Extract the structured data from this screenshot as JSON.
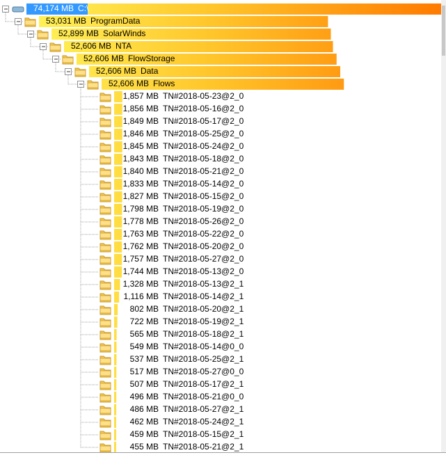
{
  "tree": {
    "size": "74,174 MB",
    "name": "C:\\",
    "children": [
      {
        "size": "53,031 MB",
        "name": "ProgramData",
        "children": [
          {
            "size": "52,899 MB",
            "name": "SolarWinds",
            "children": [
              {
                "size": "52,606 MB",
                "name": "NTA",
                "children": [
                  {
                    "size": "52,606 MB",
                    "name": "FlowStorage",
                    "children": [
                      {
                        "size": "52,606 MB",
                        "name": "Data",
                        "children": [
                          {
                            "size": "52,606 MB",
                            "name": "Flows",
                            "children": [
                              {
                                "size": "1,857 MB",
                                "name": "TN#2018-05-23@2_0"
                              },
                              {
                                "size": "1,856 MB",
                                "name": "TN#2018-05-16@2_0"
                              },
                              {
                                "size": "1,849 MB",
                                "name": "TN#2018-05-17@2_0"
                              },
                              {
                                "size": "1,846 MB",
                                "name": "TN#2018-05-25@2_0"
                              },
                              {
                                "size": "1,845 MB",
                                "name": "TN#2018-05-24@2_0"
                              },
                              {
                                "size": "1,843 MB",
                                "name": "TN#2018-05-18@2_0"
                              },
                              {
                                "size": "1,840 MB",
                                "name": "TN#2018-05-21@2_0"
                              },
                              {
                                "size": "1,833 MB",
                                "name": "TN#2018-05-14@2_0"
                              },
                              {
                                "size": "1,827 MB",
                                "name": "TN#2018-05-15@2_0"
                              },
                              {
                                "size": "1,798 MB",
                                "name": "TN#2018-05-19@2_0"
                              },
                              {
                                "size": "1,778 MB",
                                "name": "TN#2018-05-26@2_0"
                              },
                              {
                                "size": "1,763 MB",
                                "name": "TN#2018-05-22@2_0"
                              },
                              {
                                "size": "1,762 MB",
                                "name": "TN#2018-05-20@2_0"
                              },
                              {
                                "size": "1,757 MB",
                                "name": "TN#2018-05-27@2_0"
                              },
                              {
                                "size": "1,744 MB",
                                "name": "TN#2018-05-13@2_0"
                              },
                              {
                                "size": "1,328 MB",
                                "name": "TN#2018-05-13@2_1"
                              },
                              {
                                "size": "1,116 MB",
                                "name": "TN#2018-05-14@2_1"
                              },
                              {
                                "size": "802 MB",
                                "name": "TN#2018-05-20@2_1"
                              },
                              {
                                "size": "722 MB",
                                "name": "TN#2018-05-19@2_1"
                              },
                              {
                                "size": "565 MB",
                                "name": "TN#2018-05-18@2_1"
                              },
                              {
                                "size": "549 MB",
                                "name": "TN#2018-05-14@0_0"
                              },
                              {
                                "size": "537 MB",
                                "name": "TN#2018-05-25@2_1"
                              },
                              {
                                "size": "517 MB",
                                "name": "TN#2018-05-27@0_0"
                              },
                              {
                                "size": "507 MB",
                                "name": "TN#2018-05-17@2_1"
                              },
                              {
                                "size": "496 MB",
                                "name": "TN#2018-05-21@0_0"
                              },
                              {
                                "size": "486 MB",
                                "name": "TN#2018-05-27@2_1"
                              },
                              {
                                "size": "462 MB",
                                "name": "TN#2018-05-24@2_1"
                              },
                              {
                                "size": "459 MB",
                                "name": "TN#2018-05-15@2_1"
                              },
                              {
                                "size": "455 MB",
                                "name": "TN#2018-05-21@2_1"
                              }
                            ]
                          }
                        ]
                      }
                    ]
                  }
                ]
              }
            ]
          }
        ]
      }
    ]
  }
}
